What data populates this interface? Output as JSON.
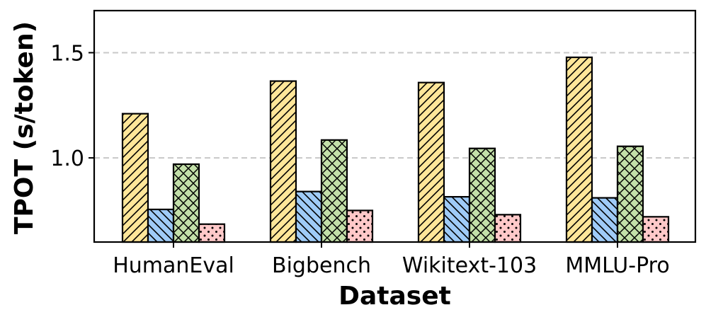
{
  "chart_data": {
    "type": "bar",
    "title": "",
    "xlabel": "Dataset",
    "ylabel": "TPOT (s/token)",
    "categories": [
      "HumanEval",
      "Bigbench",
      "Wikitext-103",
      "MMLU-Pro"
    ],
    "series": [
      {
        "values": [
          1.21,
          1.365,
          1.358,
          1.478
        ],
        "color": "#ffe699",
        "pattern": "diagonal-hatch"
      },
      {
        "values": [
          0.755,
          0.84,
          0.815,
          0.81
        ],
        "color": "#9fcbf7",
        "pattern": "backslash-hatch"
      },
      {
        "values": [
          0.97,
          1.085,
          1.045,
          1.055
        ],
        "color": "#c3e0a9",
        "pattern": "cross-hatch"
      },
      {
        "values": [
          0.685,
          0.75,
          0.73,
          0.72
        ],
        "color": "#ffc9c9",
        "pattern": "dots"
      }
    ],
    "ylim": [
      0.6,
      1.7
    ],
    "yticks": [
      1.0,
      1.5
    ],
    "ytick_labels": [
      "1.0",
      "1.5"
    ],
    "grid": "horizontal-dashed"
  }
}
